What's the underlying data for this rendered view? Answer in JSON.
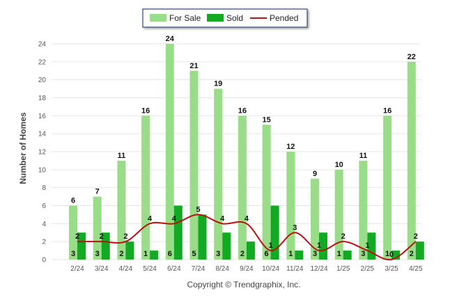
{
  "chart_data": {
    "type": "bar",
    "ylabel": "Number of Homes",
    "xlabel": "",
    "ylim": [
      0,
      24
    ],
    "yticks": [
      0,
      2,
      4,
      6,
      8,
      10,
      12,
      14,
      16,
      18,
      20,
      22,
      24
    ],
    "grid": true,
    "legend_placement": "top-center",
    "categories": [
      "2/24",
      "3/24",
      "4/24",
      "5/24",
      "6/24",
      "7/24",
      "8/24",
      "9/24",
      "10/24",
      "11/24",
      "12/24",
      "1/25",
      "2/25",
      "3/25",
      "4/25"
    ],
    "series": [
      {
        "name": "For Sale",
        "type": "bar",
        "color": "#99dd88",
        "values": [
          6,
          7,
          11,
          16,
          24,
          21,
          19,
          16,
          15,
          12,
          9,
          10,
          11,
          16,
          22
        ]
      },
      {
        "name": "Sold",
        "type": "bar",
        "color": "#11aa22",
        "values": [
          3,
          3,
          2,
          1,
          6,
          5,
          3,
          2,
          6,
          1,
          3,
          1,
          3,
          1,
          2
        ]
      },
      {
        "name": "Pended",
        "type": "line",
        "color": "#bb1111",
        "values": [
          2,
          2,
          2,
          4,
          4,
          5,
          4,
          4,
          1,
          3,
          1,
          2,
          1,
          0,
          2
        ]
      }
    ]
  },
  "copyright": "Copyright © Trendgraphix, Inc."
}
